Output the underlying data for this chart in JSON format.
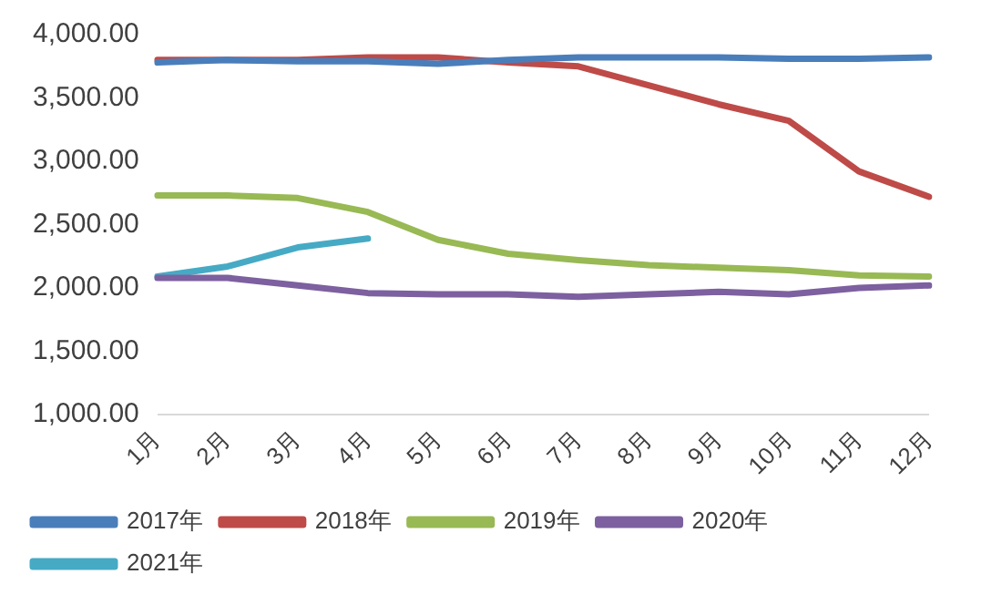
{
  "chart_data": {
    "type": "line",
    "categories": [
      "1月",
      "2月",
      "3月",
      "4月",
      "5月",
      "6月",
      "7月",
      "8月",
      "9月",
      "10月",
      "11月",
      "12月"
    ],
    "series": [
      {
        "name": "2017年",
        "color": "#4a7ebb",
        "values": [
          3780,
          3800,
          3790,
          3790,
          3770,
          3800,
          3820,
          3820,
          3820,
          3810,
          3810,
          3820
        ]
      },
      {
        "name": "2018年",
        "color": "#be4b48",
        "values": [
          3800,
          3800,
          3800,
          3820,
          3820,
          3780,
          3750,
          3600,
          3450,
          3320,
          2920,
          2720
        ]
      },
      {
        "name": "2019年",
        "color": "#98b954",
        "values": [
          2730,
          2730,
          2710,
          2600,
          2380,
          2270,
          2220,
          2180,
          2160,
          2140,
          2100,
          2090
        ]
      },
      {
        "name": "2020年",
        "color": "#7d60a0",
        "values": [
          2080,
          2080,
          2020,
          1960,
          1950,
          1950,
          1930,
          1950,
          1970,
          1950,
          2000,
          2020
        ]
      },
      {
        "name": "2021年",
        "color": "#46aac5",
        "values": [
          2090,
          2170,
          2320,
          2390,
          null,
          null,
          null,
          null,
          null,
          null,
          null,
          null
        ]
      }
    ],
    "ylim": [
      1000,
      4000
    ],
    "yticks": [
      {
        "value": 1000,
        "label": "1,000.00"
      },
      {
        "value": 1500,
        "label": "1,500.00"
      },
      {
        "value": 2000,
        "label": "2,000.00"
      },
      {
        "value": 2500,
        "label": "2,500.00"
      },
      {
        "value": 3000,
        "label": "3,000.00"
      },
      {
        "value": 3500,
        "label": "3,500.00"
      },
      {
        "value": 4000,
        "label": "4,000.00"
      }
    ],
    "grid": false,
    "legend": "bottom",
    "marker": "none",
    "line_style": "solid"
  }
}
